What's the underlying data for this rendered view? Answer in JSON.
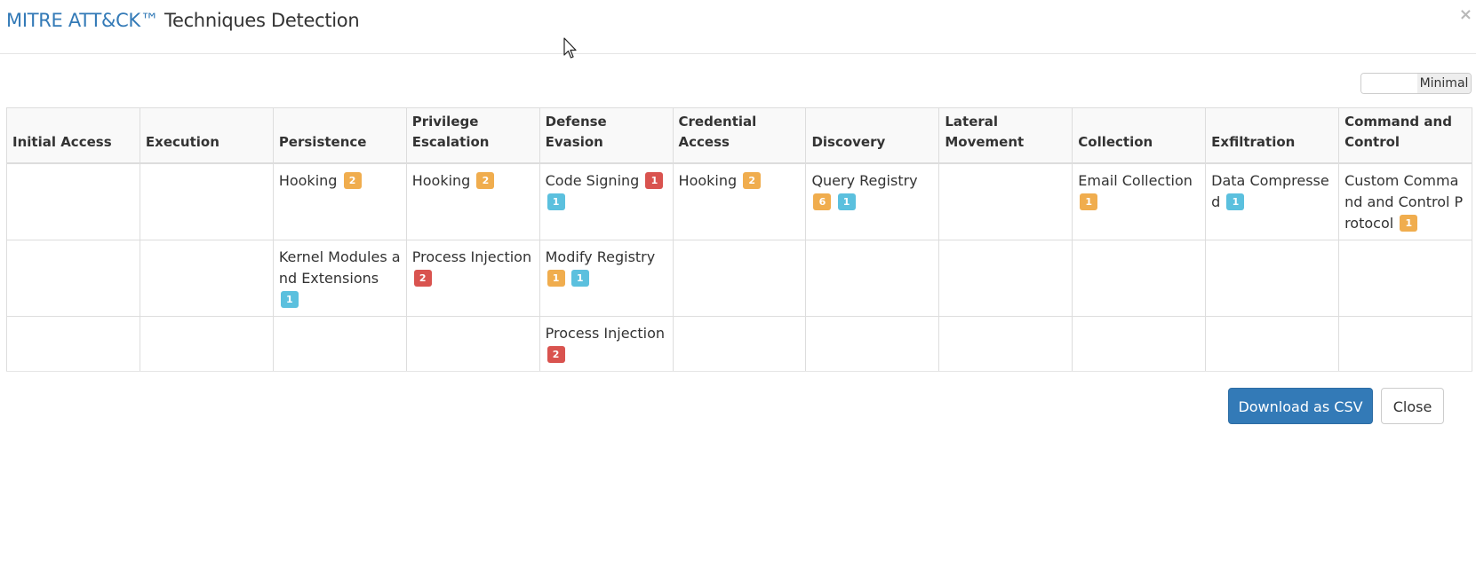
{
  "modal": {
    "title_brand": "MITRE ATT&CK™",
    "title_rest": " Techniques Detection",
    "close_glyph": "×"
  },
  "toggle": {
    "label": "Minimal"
  },
  "table": {
    "headers": [
      "Initial Access",
      "Execution",
      "Persistence",
      "Privilege Escalation",
      "Defense Evasion",
      "Credential Access",
      "Discovery",
      "Lateral Movement",
      "Collection",
      "Exfiltration",
      "Command and Control"
    ],
    "rows": [
      [
        [],
        [],
        [
          {
            "name": "Hooking",
            "badges": [
              {
                "value": "2",
                "color": "orange"
              }
            ]
          }
        ],
        [
          {
            "name": "Hooking",
            "badges": [
              {
                "value": "2",
                "color": "orange"
              }
            ]
          }
        ],
        [
          {
            "name": "Code Signing",
            "badges": [
              {
                "value": "1",
                "color": "red"
              },
              {
                "value": "1",
                "color": "blue"
              }
            ]
          }
        ],
        [
          {
            "name": "Hooking",
            "badges": [
              {
                "value": "2",
                "color": "orange"
              }
            ]
          }
        ],
        [
          {
            "name": "Query Registry",
            "badges": [
              {
                "value": "6",
                "color": "orange"
              },
              {
                "value": "1",
                "color": "blue"
              }
            ]
          }
        ],
        [],
        [
          {
            "name": "Email Collection",
            "badges": [
              {
                "value": "1",
                "color": "orange"
              }
            ]
          }
        ],
        [
          {
            "name": "Data Compressed",
            "badges": [
              {
                "value": "1",
                "color": "blue"
              }
            ]
          }
        ],
        [
          {
            "name": "Custom Command and Control Protocol",
            "badges": [
              {
                "value": "1",
                "color": "orange"
              }
            ]
          }
        ]
      ],
      [
        [],
        [],
        [
          {
            "name": "Kernel Modules and Extensions",
            "badges": [
              {
                "value": "1",
                "color": "blue"
              }
            ]
          }
        ],
        [
          {
            "name": "Process Injection",
            "badges": [
              {
                "value": "2",
                "color": "red"
              }
            ]
          }
        ],
        [
          {
            "name": "Modify Registry",
            "badges": [
              {
                "value": "1",
                "color": "orange"
              },
              {
                "value": "1",
                "color": "blue"
              }
            ]
          }
        ],
        [],
        [],
        [],
        [],
        [],
        []
      ],
      [
        [],
        [],
        [],
        [],
        [
          {
            "name": "Process Injection",
            "badges": [
              {
                "value": "2",
                "color": "red"
              }
            ]
          }
        ],
        [],
        [],
        [],
        [],
        [],
        []
      ]
    ]
  },
  "footer": {
    "download_label": "Download as CSV",
    "close_label": "Close"
  },
  "colors": {
    "primary": "#337ab7",
    "badge_orange": "#f0ad4e",
    "badge_blue": "#5bc0de",
    "badge_red": "#d9534f"
  }
}
